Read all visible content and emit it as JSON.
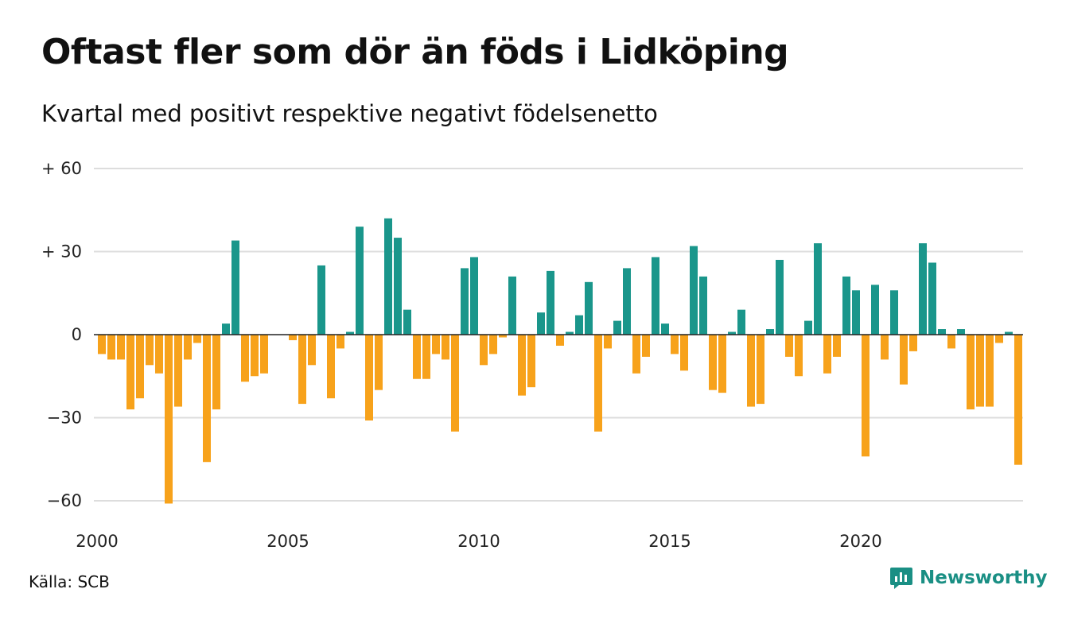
{
  "header": {
    "title": "Oftast fler som dör än föds i Lidköping",
    "subtitle": "Kvartal med positivt respektive negativt födelsenetto"
  },
  "footer": {
    "source": "Källa: SCB",
    "brand": "Newsworthy"
  },
  "colors": {
    "positive": "#1a968b",
    "negative": "#f7a21b",
    "grid": "#dddddd",
    "axis": "#222222"
  },
  "chart_data": {
    "type": "bar",
    "title": "Oftast fler som dör än föds i Lidköping",
    "subtitle": "Kvartal med positivt respektive negativt födelsenetto",
    "xlabel": "",
    "ylabel": "",
    "ylim": [
      -65,
      60
    ],
    "yticks": [
      {
        "value": 60,
        "label": "+ 60"
      },
      {
        "value": 30,
        "label": "+ 30"
      },
      {
        "value": 0,
        "label": "0"
      },
      {
        "value": -30,
        "label": "−30"
      },
      {
        "value": -60,
        "label": "−60"
      }
    ],
    "xticks": [
      {
        "year": 2000,
        "label": "2000"
      },
      {
        "year": 2005,
        "label": "2005"
      },
      {
        "year": 2010,
        "label": "2010"
      },
      {
        "year": 2015,
        "label": "2015"
      },
      {
        "year": 2020,
        "label": "2020"
      }
    ],
    "grid": true,
    "legend": "none",
    "x_start": "2000 Q1",
    "x_end": "2024 Q1",
    "values": [
      -7,
      -9,
      -9,
      -27,
      -23,
      -11,
      -14,
      -61,
      -26,
      -9,
      -3,
      -46,
      -27,
      4,
      34,
      -17,
      -15,
      -14,
      0,
      0,
      -2,
      -25,
      -11,
      25,
      -23,
      -5,
      1,
      39,
      -31,
      -20,
      42,
      35,
      9,
      -16,
      -16,
      -7,
      -9,
      -35,
      24,
      28,
      -11,
      -7,
      -1,
      21,
      -22,
      -19,
      8,
      23,
      -4,
      1,
      7,
      19,
      -35,
      -5,
      5,
      24,
      -14,
      -8,
      28,
      4,
      -7,
      -13,
      32,
      21,
      -20,
      -21,
      1,
      9,
      -26,
      -25,
      2,
      27,
      -8,
      -15,
      5,
      33,
      -14,
      -8,
      21,
      16,
      -44,
      18,
      -9,
      16,
      -18,
      -6,
      33,
      26,
      2,
      -5,
      2,
      -27,
      -26,
      -26,
      -3,
      1,
      -47
    ]
  }
}
